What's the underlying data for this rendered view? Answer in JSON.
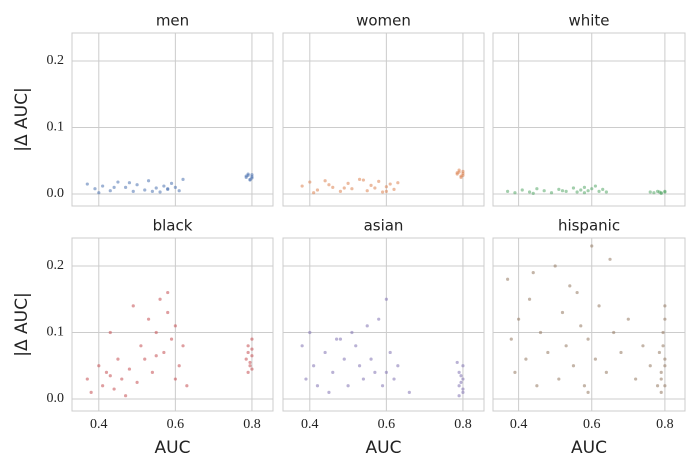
{
  "chart_data": [
    {
      "type": "scatter",
      "title": "men",
      "color": "#4c72b0",
      "ylabel": "|Δ AUC|",
      "x": [
        0.37,
        0.39,
        0.41,
        0.43,
        0.45,
        0.47,
        0.49,
        0.5,
        0.52,
        0.53,
        0.55,
        0.56,
        0.57,
        0.58,
        0.59,
        0.6,
        0.61,
        0.62,
        0.4,
        0.44,
        0.48,
        0.54,
        0.58,
        0.785,
        0.79,
        0.795,
        0.8,
        0.79,
        0.8,
        0.795,
        0.785,
        0.8
      ],
      "y": [
        0.015,
        0.008,
        0.012,
        0.005,
        0.018,
        0.01,
        0.004,
        0.014,
        0.006,
        0.02,
        0.009,
        0.003,
        0.012,
        0.007,
        0.016,
        0.01,
        0.005,
        0.022,
        0.002,
        0.01,
        0.017,
        0.004,
        0.008,
        0.025,
        0.028,
        0.022,
        0.026,
        0.03,
        0.024,
        0.021,
        0.027,
        0.029
      ],
      "xlim": [
        0.33,
        0.855
      ],
      "ylim": [
        -0.018,
        0.242
      ],
      "xticks": [
        0.4,
        0.6,
        0.8
      ],
      "yticks": [
        {
          "value": 0,
          "label": "0.0"
        },
        0.1,
        0.2
      ],
      "xtick_labels": false,
      "ytick_labels": true,
      "grid": true
    },
    {
      "type": "scatter",
      "title": "women",
      "color": "#dd8452",
      "x": [
        0.38,
        0.4,
        0.42,
        0.44,
        0.46,
        0.48,
        0.5,
        0.51,
        0.53,
        0.55,
        0.56,
        0.57,
        0.58,
        0.59,
        0.6,
        0.61,
        0.62,
        0.63,
        0.41,
        0.45,
        0.49,
        0.54,
        0.6,
        0.785,
        0.79,
        0.795,
        0.8,
        0.79,
        0.8,
        0.795,
        0.785,
        0.8
      ],
      "y": [
        0.012,
        0.018,
        0.006,
        0.02,
        0.01,
        0.004,
        0.016,
        0.008,
        0.022,
        0.005,
        0.013,
        0.009,
        0.019,
        0.003,
        0.011,
        0.015,
        0.007,
        0.017,
        0.002,
        0.014,
        0.009,
        0.021,
        0.004,
        0.03,
        0.033,
        0.027,
        0.031,
        0.036,
        0.028,
        0.025,
        0.032,
        0.034
      ],
      "xlim": [
        0.33,
        0.855
      ],
      "ylim": [
        -0.018,
        0.242
      ],
      "xticks": [
        0.4,
        0.6,
        0.8
      ],
      "yticks": [
        {
          "value": 0,
          "label": "0.0"
        },
        0.1,
        0.2
      ],
      "xtick_labels": false,
      "ytick_labels": false,
      "grid": true
    },
    {
      "type": "scatter",
      "title": "white",
      "color": "#55a868",
      "x": [
        0.37,
        0.39,
        0.41,
        0.43,
        0.45,
        0.47,
        0.49,
        0.51,
        0.53,
        0.55,
        0.56,
        0.57,
        0.58,
        0.59,
        0.6,
        0.61,
        0.62,
        0.63,
        0.64,
        0.44,
        0.52,
        0.58,
        0.76,
        0.77,
        0.78,
        0.79,
        0.8,
        0.79,
        0.8,
        0.785
      ],
      "y": [
        0.004,
        0.002,
        0.006,
        0.003,
        0.008,
        0.005,
        0.002,
        0.007,
        0.004,
        0.009,
        0.003,
        0.006,
        0.01,
        0.005,
        0.008,
        0.012,
        0.004,
        0.007,
        0.003,
        0.001,
        0.005,
        0.002,
        0.003,
        0.002,
        0.004,
        0.001,
        0.003,
        0.002,
        0.004,
        0.003
      ],
      "xlim": [
        0.33,
        0.855
      ],
      "ylim": [
        -0.018,
        0.242
      ],
      "xticks": [
        0.4,
        0.6,
        0.8
      ],
      "yticks": [
        {
          "value": 0,
          "label": "0.0"
        },
        0.1,
        0.2
      ],
      "xtick_labels": false,
      "ytick_labels": false,
      "grid": true
    },
    {
      "type": "scatter",
      "title": "black",
      "color": "#c44e52",
      "xlabel": "AUC",
      "ylabel": "|Δ AUC|",
      "x": [
        0.37,
        0.38,
        0.4,
        0.41,
        0.42,
        0.43,
        0.44,
        0.45,
        0.46,
        0.47,
        0.48,
        0.5,
        0.51,
        0.52,
        0.53,
        0.54,
        0.55,
        0.56,
        0.57,
        0.58,
        0.59,
        0.6,
        0.61,
        0.62,
        0.63,
        0.43,
        0.49,
        0.55,
        0.58,
        0.6,
        0.79,
        0.79,
        0.795,
        0.8,
        0.8,
        0.795,
        0.79,
        0.8,
        0.785,
        0.8
      ],
      "y": [
        0.03,
        0.01,
        0.05,
        0.02,
        0.04,
        0.1,
        0.015,
        0.06,
        0.03,
        0.005,
        0.045,
        0.025,
        0.08,
        0.06,
        0.12,
        0.04,
        0.1,
        0.15,
        0.07,
        0.13,
        0.09,
        0.11,
        0.05,
        0.08,
        0.02,
        0.035,
        0.14,
        0.065,
        0.16,
        0.03,
        0.04,
        0.07,
        0.055,
        0.09,
        0.065,
        0.05,
        0.08,
        0.045,
        0.06,
        0.075
      ],
      "xlim": [
        0.33,
        0.855
      ],
      "ylim": [
        -0.018,
        0.242
      ],
      "xticks": [
        0.4,
        0.6,
        0.8
      ],
      "yticks": [
        {
          "value": 0,
          "label": "0.0"
        },
        0.1,
        0.2
      ],
      "xtick_labels": true,
      "ytick_labels": true,
      "grid": true
    },
    {
      "type": "scatter",
      "title": "asian",
      "color": "#8172b3",
      "xlabel": "AUC",
      "x": [
        0.38,
        0.39,
        0.4,
        0.41,
        0.42,
        0.44,
        0.45,
        0.46,
        0.48,
        0.49,
        0.5,
        0.52,
        0.53,
        0.54,
        0.55,
        0.56,
        0.57,
        0.58,
        0.59,
        0.6,
        0.61,
        0.62,
        0.63,
        0.47,
        0.51,
        0.6,
        0.66,
        0.79,
        0.79,
        0.795,
        0.8,
        0.8,
        0.795,
        0.79,
        0.8,
        0.785,
        0.8
      ],
      "y": [
        0.08,
        0.03,
        0.1,
        0.05,
        0.02,
        0.07,
        0.01,
        0.04,
        0.09,
        0.06,
        0.02,
        0.08,
        0.05,
        0.03,
        0.11,
        0.06,
        0.04,
        0.12,
        0.02,
        0.15,
        0.07,
        0.03,
        0.05,
        0.09,
        0.1,
        0.04,
        0.01,
        0.005,
        0.02,
        0.035,
        0.01,
        0.05,
        0.025,
        0.04,
        0.015,
        0.055,
        0.03
      ],
      "xlim": [
        0.33,
        0.855
      ],
      "ylim": [
        -0.018,
        0.242
      ],
      "xticks": [
        0.4,
        0.6,
        0.8
      ],
      "yticks": [
        {
          "value": 0,
          "label": "0.0"
        },
        0.1,
        0.2
      ],
      "xtick_labels": true,
      "ytick_labels": false,
      "grid": true
    },
    {
      "type": "scatter",
      "title": "hispanic",
      "color": "#937860",
      "xlabel": "AUC",
      "x": [
        0.37,
        0.38,
        0.39,
        0.4,
        0.42,
        0.43,
        0.45,
        0.46,
        0.48,
        0.5,
        0.51,
        0.52,
        0.53,
        0.55,
        0.56,
        0.57,
        0.58,
        0.59,
        0.6,
        0.61,
        0.62,
        0.64,
        0.66,
        0.68,
        0.7,
        0.72,
        0.74,
        0.76,
        0.78,
        0.44,
        0.54,
        0.59,
        0.65,
        0.79,
        0.79,
        0.795,
        0.8,
        0.8,
        0.795,
        0.79,
        0.8,
        0.785,
        0.8,
        0.8
      ],
      "y": [
        0.18,
        0.09,
        0.04,
        0.12,
        0.06,
        0.15,
        0.02,
        0.1,
        0.07,
        0.2,
        0.03,
        0.13,
        0.08,
        0.05,
        0.16,
        0.11,
        0.02,
        0.09,
        0.23,
        0.06,
        0.14,
        0.04,
        0.1,
        0.07,
        0.12,
        0.03,
        0.08,
        0.05,
        0.02,
        0.19,
        0.17,
        0.01,
        0.21,
        0.01,
        0.04,
        0.08,
        0.12,
        0.06,
        0.1,
        0.03,
        0.14,
        0.07,
        0.05,
        0.02
      ],
      "xlim": [
        0.33,
        0.855
      ],
      "ylim": [
        -0.018,
        0.242
      ],
      "xticks": [
        0.4,
        0.6,
        0.8
      ],
      "yticks": [
        {
          "value": 0,
          "label": "0.0"
        },
        0.1,
        0.2
      ],
      "xtick_labels": true,
      "ytick_labels": false,
      "grid": true
    }
  ]
}
